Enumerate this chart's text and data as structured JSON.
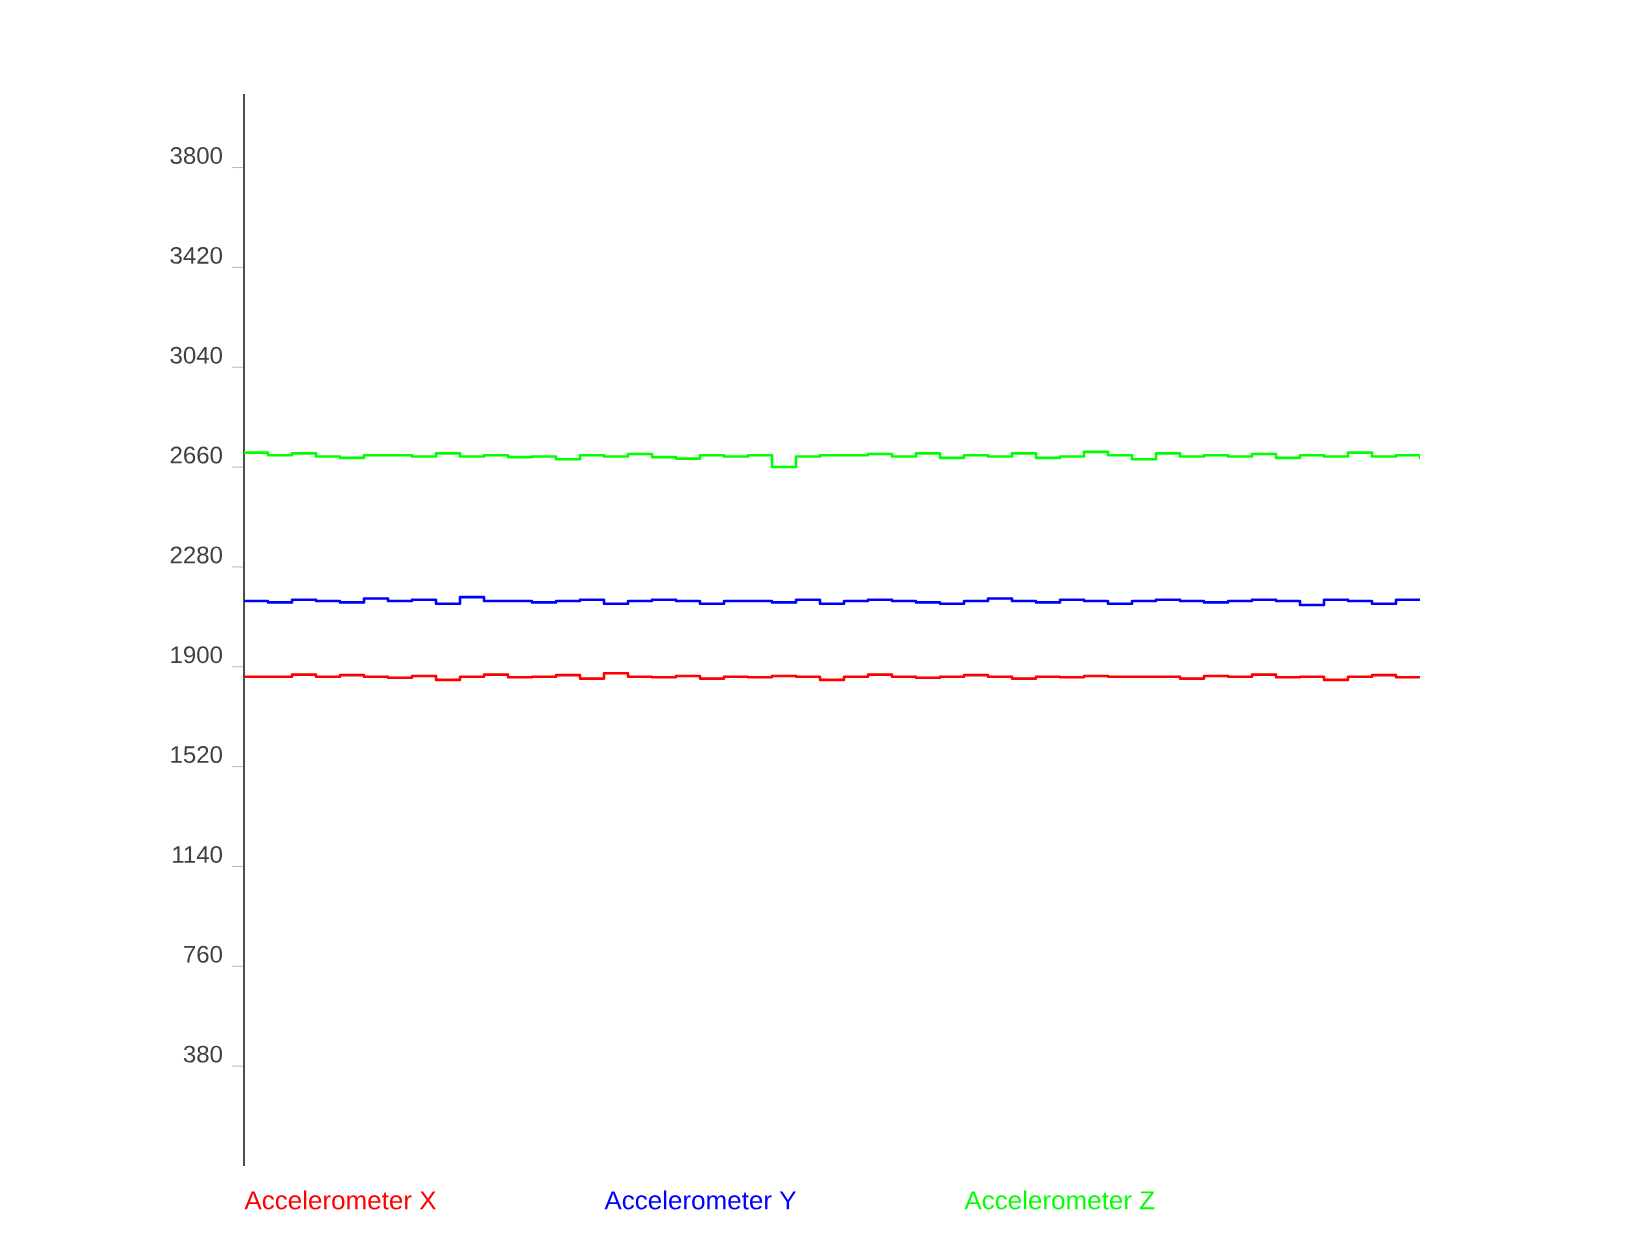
{
  "chart_data": {
    "type": "step",
    "categories": [
      null,
      null,
      null,
      null,
      null,
      null,
      null,
      null,
      null,
      null,
      null,
      null,
      null,
      null,
      null,
      null,
      null,
      null,
      null,
      null,
      null,
      null,
      null,
      null,
      null,
      null,
      null,
      null,
      null,
      null,
      null,
      null,
      null,
      null,
      null,
      null,
      null,
      null,
      null,
      null,
      null,
      null,
      null,
      null,
      null,
      null,
      null,
      null,
      null,
      null
    ],
    "series": [
      {
        "name": "Accelerometer X",
        "color": "#ff0000",
        "values": [
          1862,
          1862,
          1870,
          1862,
          1868,
          1862,
          1858,
          1865,
          1850,
          1862,
          1870,
          1860,
          1862,
          1868,
          1855,
          1875,
          1862,
          1860,
          1865,
          1855,
          1862,
          1860,
          1865,
          1862,
          1850,
          1862,
          1870,
          1862,
          1858,
          1862,
          1868,
          1862,
          1855,
          1862,
          1860,
          1865,
          1862,
          1862,
          1862,
          1855,
          1865,
          1862,
          1870,
          1860,
          1862,
          1850,
          1862,
          1868,
          1860,
          1862
        ]
      },
      {
        "name": "Accelerometer Y",
        "color": "#0000ff",
        "values": [
          2150,
          2145,
          2155,
          2150,
          2145,
          2160,
          2150,
          2155,
          2140,
          2165,
          2150,
          2150,
          2145,
          2150,
          2155,
          2140,
          2150,
          2155,
          2150,
          2140,
          2150,
          2150,
          2145,
          2155,
          2140,
          2150,
          2155,
          2150,
          2145,
          2140,
          2150,
          2160,
          2150,
          2145,
          2155,
          2150,
          2140,
          2150,
          2155,
          2150,
          2145,
          2150,
          2155,
          2150,
          2135,
          2155,
          2150,
          2140,
          2155,
          2155
        ]
      },
      {
        "name": "Accelerometer Z",
        "color": "#00ff00",
        "values": [
          2715,
          2705,
          2712,
          2700,
          2695,
          2705,
          2705,
          2700,
          2712,
          2700,
          2705,
          2698,
          2700,
          2690,
          2705,
          2700,
          2710,
          2698,
          2692,
          2705,
          2700,
          2705,
          2660,
          2700,
          2705,
          2705,
          2710,
          2700,
          2712,
          2695,
          2705,
          2700,
          2712,
          2695,
          2700,
          2718,
          2705,
          2690,
          2712,
          2700,
          2705,
          2700,
          2710,
          2695,
          2705,
          2700,
          2715,
          2700,
          2705,
          2690
        ]
      }
    ],
    "ylim": [
      0,
      4080
    ],
    "yticks": [
      380,
      760,
      1140,
      1520,
      1900,
      2280,
      2660,
      3040,
      3420,
      3800
    ],
    "legend": "bottom",
    "marker": "none",
    "grid": false,
    "tick_labels": "y"
  }
}
